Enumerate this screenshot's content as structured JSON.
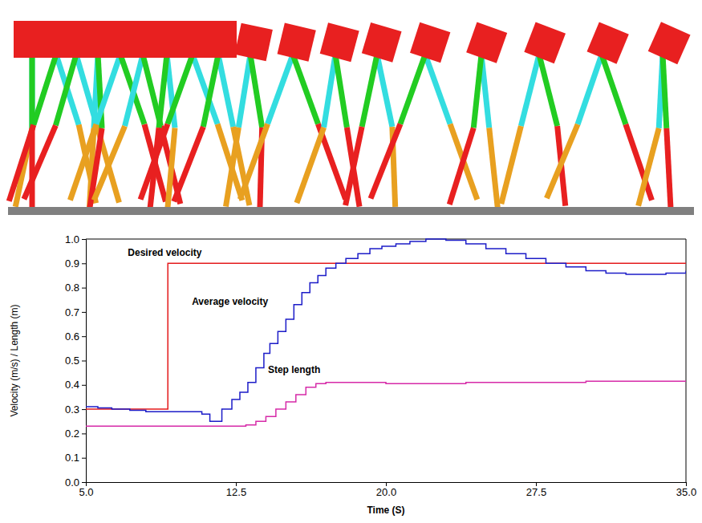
{
  "chart_data": {
    "type": "line",
    "x_label": "Time (S)",
    "y_label": "Velocity (m/s) / Length (m)",
    "xlim": [
      5,
      35
    ],
    "xticks": [
      {
        "value": 5,
        "label": "5.0"
      },
      12.5,
      {
        "value": 20,
        "label": "20.0"
      },
      27.5,
      {
        "value": 35,
        "label": "35.0"
      }
    ],
    "ylim": [
      0,
      1
    ],
    "yticks": [
      {
        "value": 0,
        "label": "0.0"
      },
      0.1,
      0.2,
      0.3,
      0.4,
      0.5,
      0.6,
      0.7,
      0.8,
      0.9,
      {
        "value": 1,
        "label": "1.0"
      }
    ],
    "grid": false,
    "line_style": "step",
    "series": [
      {
        "name": "Desired velocity",
        "color": "#e41a1c",
        "x": [
          5,
          9.1,
          35
        ],
        "values": [
          0.3,
          0.9,
          0.9
        ]
      },
      {
        "name": "Average velocity",
        "color": "#1c1cc8",
        "x": [
          5.0,
          5.6,
          6.3,
          7.2,
          8.0,
          9.0,
          10.0,
          10.8,
          11.2,
          11.8,
          12.3,
          12.7,
          13.1,
          13.5,
          13.9,
          14.2,
          14.6,
          15.0,
          15.4,
          15.8,
          16.2,
          16.6,
          17.0,
          17.5,
          18.0,
          18.6,
          19.2,
          19.8,
          20.5,
          21.2,
          22.0,
          23.0,
          24.0,
          25.0,
          26.0,
          27.0,
          28.0,
          29.0,
          30.0,
          31.0,
          32.0,
          33.0,
          34.0,
          35.0
        ],
        "values": [
          0.31,
          0.305,
          0.3,
          0.295,
          0.29,
          0.29,
          0.29,
          0.28,
          0.25,
          0.3,
          0.34,
          0.37,
          0.41,
          0.47,
          0.53,
          0.57,
          0.62,
          0.67,
          0.73,
          0.78,
          0.82,
          0.85,
          0.88,
          0.9,
          0.92,
          0.94,
          0.96,
          0.97,
          0.98,
          0.99,
          1.0,
          0.995,
          0.98,
          0.96,
          0.94,
          0.92,
          0.9,
          0.885,
          0.87,
          0.86,
          0.855,
          0.855,
          0.86,
          0.87
        ]
      },
      {
        "name": "Step length",
        "color": "#d62aa8",
        "x": [
          5.0,
          12.5,
          13.0,
          13.5,
          14.0,
          14.5,
          15.0,
          15.5,
          16.0,
          16.5,
          17.0,
          18.0,
          20.0,
          22.0,
          24.0,
          27.0,
          30.0,
          35.0
        ],
        "values": [
          0.23,
          0.23,
          0.235,
          0.25,
          0.27,
          0.3,
          0.33,
          0.36,
          0.39,
          0.405,
          0.41,
          0.41,
          0.405,
          0.405,
          0.41,
          0.41,
          0.415,
          0.415
        ]
      }
    ],
    "annotations": [
      {
        "text": "Desired velocity",
        "x": 7.1,
        "y": 0.93
      },
      {
        "text": "Average velocity",
        "x": 10.3,
        "y": 0.73
      },
      {
        "text": "Step length",
        "x": 14.1,
        "y": 0.45
      }
    ]
  }
}
